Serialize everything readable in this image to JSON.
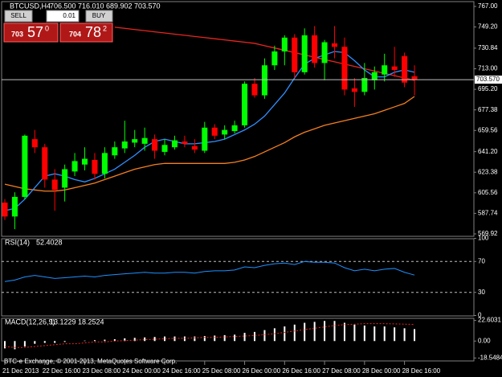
{
  "header": {
    "symbol": "BTCUSD,H4",
    "open": "706.500",
    "high": "716.010",
    "low": "689.902",
    "close": "703.570"
  },
  "trade_panel": {
    "sell": "SELL",
    "lot": "0.01",
    "buy": "BUY",
    "sell_price": {
      "big": "703",
      "pips": "57",
      "frac": "0"
    },
    "buy_price": {
      "big": "704",
      "pips": "78",
      "frac": "2"
    }
  },
  "footer": "BTC-e Exchange, © 2001-2013, MetaQuotes Software Corp.",
  "chart_data": [
    {
      "type": "candlestick",
      "up_color": "#00ff00",
      "down_color": "#ff0000",
      "bid_label": "703.570",
      "bid_color": "#c0c0c0",
      "categories": [
        "21 Dec 2013",
        null,
        null,
        null,
        "22 Dec 16:00",
        null,
        null,
        null,
        "23 Dec 08:00",
        null,
        null,
        null,
        "24 Dec 00:00",
        null,
        null,
        null,
        "24 Dec 16:00",
        null,
        null,
        null,
        "25 Dec 08:00",
        null,
        null,
        null,
        "26 Dec 00:00",
        null,
        null,
        null,
        "26 Dec 16:00",
        null,
        null,
        null,
        "27 Dec 08:00",
        null,
        null,
        null,
        "28 Dec 00:00",
        null,
        null,
        null,
        "28 Dec 16:00",
        null
      ],
      "open": [
        597,
        585,
        602,
        652,
        645,
        617,
        610,
        624,
        630,
        634,
        622,
        638,
        644,
        649,
        648,
        652,
        641,
        645,
        650,
        646,
        642,
        662,
        656,
        659,
        664,
        700,
        690,
        716,
        728,
        740,
        710,
        742,
        718,
        735,
        732,
        696,
        693,
        703,
        708,
        715,
        724,
        706.5
      ],
      "high": [
        600,
        606,
        656,
        660,
        648,
        626,
        630,
        640,
        645,
        640,
        645,
        650,
        668,
        660,
        662,
        656,
        652,
        655,
        655,
        652,
        667,
        665,
        664,
        668,
        702,
        705,
        722,
        733,
        742,
        743,
        748,
        750,
        738,
        750,
        740,
        705,
        718,
        715,
        726,
        732,
        727,
        716.01
      ],
      "low": [
        582,
        574,
        600,
        640,
        610,
        590,
        598,
        620,
        625,
        617,
        618,
        635,
        640,
        645,
        642,
        635,
        638,
        643,
        645,
        640,
        640,
        652,
        652,
        657,
        662,
        688,
        687,
        712,
        716,
        705,
        708,
        714,
        703,
        722,
        690,
        680,
        690,
        695,
        702,
        706,
        697,
        689.902
      ],
      "close": [
        585,
        602,
        655,
        645,
        617,
        608,
        626,
        633,
        635,
        622,
        640,
        645,
        650,
        652,
        653,
        642,
        647,
        651,
        648,
        643,
        662,
        655,
        660,
        664,
        700,
        690,
        716,
        728,
        740,
        710,
        742,
        718,
        736,
        732,
        695,
        693,
        705,
        710,
        716,
        712,
        701,
        703.57
      ],
      "overlays": [
        {
          "color": "#e8251f",
          "values": [
            null,
            null,
            null,
            null,
            null,
            null,
            null,
            null,
            null,
            null,
            null,
            749,
            748,
            747,
            746,
            745,
            744,
            743,
            742,
            741,
            740,
            739,
            738,
            737,
            736,
            735,
            733,
            731,
            729,
            727,
            725,
            723,
            721,
            719,
            717,
            715,
            713,
            711,
            709,
            707,
            705,
            703
          ]
        },
        {
          "color": "#f47f20",
          "values": [
            613,
            611,
            609,
            608,
            607,
            607,
            608,
            610,
            612,
            614,
            617,
            620,
            623,
            626,
            628,
            630,
            631,
            631,
            631,
            631,
            631,
            631,
            631,
            632,
            634,
            637,
            641,
            645,
            649,
            654,
            658,
            661,
            664,
            666,
            668,
            670,
            672,
            674,
            677,
            680,
            683,
            689
          ]
        },
        {
          "color": "#2f8fff",
          "values": [
            590,
            592,
            600,
            610,
            620,
            622,
            620,
            617,
            615,
            618,
            622,
            626,
            632,
            638,
            645,
            650,
            652,
            650,
            648,
            648,
            649,
            650,
            652,
            656,
            660,
            665,
            672,
            682,
            692,
            705,
            717,
            722,
            725,
            728,
            727,
            720,
            712,
            706,
            706,
            710,
            712,
            710
          ]
        }
      ],
      "ylim": [
        569.92,
        767
      ],
      "yticks": [
        {
          "value": 767,
          "label": "767.00"
        },
        {
          "value": 749.2,
          "label": "749.20"
        },
        730.84,
        {
          "value": 713,
          "label": "713.00"
        },
        {
          "value": 695.2,
          "label": "695.20"
        },
        677.38,
        659.56,
        {
          "value": 641.2,
          "label": "641.20"
        },
        623.38,
        605.56,
        587.74,
        569.92
      ]
    },
    {
      "type": "line",
      "title": "RSI(14)",
      "color": "#1e90ff",
      "values": [
        44,
        46,
        50,
        52,
        50,
        48,
        49,
        50,
        51,
        50,
        52,
        53,
        54,
        55,
        56,
        55,
        55,
        56,
        56,
        55,
        57,
        58,
        58,
        59,
        63,
        62,
        65,
        67,
        68,
        66,
        70,
        69,
        69,
        68,
        62,
        58,
        60,
        58,
        60,
        61,
        56,
        52.4028
      ],
      "ylim": [
        0,
        100
      ],
      "yticks": [
        100,
        70,
        30,
        0
      ]
    },
    {
      "type": "bar",
      "title": "MACD(12,26,9)",
      "color": "#ffffff",
      "signal_color": "#e8251f",
      "values": [
        -8,
        -9,
        -6,
        -3,
        -2,
        -2,
        -1,
        0,
        0.5,
        1,
        1.5,
        2,
        3,
        3.5,
        4,
        4.5,
        5,
        5,
        5,
        5,
        5.5,
        6,
        6.5,
        7,
        9,
        10,
        12,
        14,
        16,
        18,
        20,
        21,
        22,
        22,
        20,
        18,
        17,
        16,
        16,
        15,
        14,
        13.1229
      ],
      "signal": [
        -6,
        -7,
        -7,
        -6,
        -5,
        -4,
        -3,
        -3,
        -2,
        -1,
        -1,
        0,
        0.5,
        1,
        1.5,
        2,
        2.5,
        3,
        3,
        3.5,
        4,
        4,
        4.5,
        5,
        5.5,
        6,
        7,
        8,
        9.5,
        11,
        12.5,
        14,
        15.5,
        17,
        18,
        18.5,
        19,
        19,
        19,
        18.8,
        18.5,
        18.2524
      ],
      "ylim": [
        -20,
        24
      ],
      "yticks": [
        22.6031,
        {
          "value": 0,
          "label": "0.00"
        },
        -18.5484
      ]
    }
  ]
}
